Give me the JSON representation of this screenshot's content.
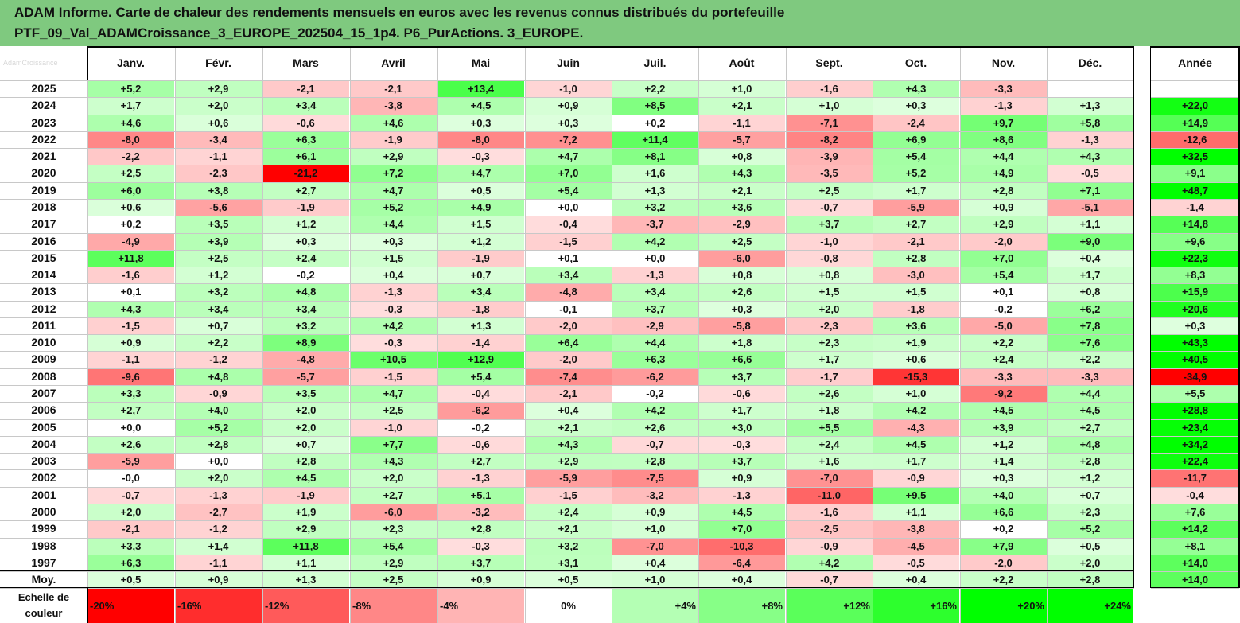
{
  "header": {
    "title_line1": "ADAM Informe. Carte de chaleur des rendements mensuels en euros avec les revenus connus distribués du portefeuille",
    "title_line2": "PTF_09_Val_ADAMCroissance_3_EUROPE_202504_15_1p4. P6_PurActions. 3_EUROPE."
  },
  "watermark": "AdamCroissance",
  "chart_data": {
    "type": "heatmap",
    "title": "ADAM Informe. Carte de chaleur des rendements mensuels en euros avec les revenus connus distribués du portefeuille PTF_09_Val_ADAMCroissance_3_EUROPE_202504_15_1p4. P6_PurActions. 3_EUROPE.",
    "columns": [
      "Janv.",
      "Févr.",
      "Mars",
      "Avril",
      "Mai",
      "Juin",
      "Juil.",
      "Août",
      "Sept.",
      "Oct.",
      "Nov.",
      "Déc."
    ],
    "year_header": "Année",
    "rows": [
      {
        "label": "2025",
        "values": [
          "+5,2",
          "+2,9",
          "-2,1",
          "-2,1",
          "+13,4",
          "-1,0",
          "+2,2",
          "+1,0",
          "-1,6",
          "+4,3",
          "-3,3",
          ""
        ],
        "year": ""
      },
      {
        "label": "2024",
        "values": [
          "+1,7",
          "+2,0",
          "+3,4",
          "-3,8",
          "+4,5",
          "+0,9",
          "+8,5",
          "+2,1",
          "+1,0",
          "+0,3",
          "-1,3",
          "+1,3"
        ],
        "year": "+22,0"
      },
      {
        "label": "2023",
        "values": [
          "+4,6",
          "+0,6",
          "-0,6",
          "+4,6",
          "+0,3",
          "+0,3",
          "+0,2",
          "-1,1",
          "-7,1",
          "-2,4",
          "+9,7",
          "+5,8"
        ],
        "year": "+14,9"
      },
      {
        "label": "2022",
        "values": [
          "-8,0",
          "-3,4",
          "+6,3",
          "-1,9",
          "-8,0",
          "-7,2",
          "+11,4",
          "-5,7",
          "-8,2",
          "+6,9",
          "+8,6",
          "-1,3"
        ],
        "year": "-12,6"
      },
      {
        "label": "2021",
        "values": [
          "-2,2",
          "-1,1",
          "+6,1",
          "+2,9",
          "-0,3",
          "+4,7",
          "+8,1",
          "+0,8",
          "-3,9",
          "+5,4",
          "+4,4",
          "+4,3"
        ],
        "year": "+32,5"
      },
      {
        "label": "2020",
        "values": [
          "+2,5",
          "-2,3",
          "-21,2",
          "+7,2",
          "+4,7",
          "+7,0",
          "+1,6",
          "+4,3",
          "-3,5",
          "+5,2",
          "+4,9",
          "-0,5"
        ],
        "year": "+9,1"
      },
      {
        "label": "2019",
        "values": [
          "+6,0",
          "+3,8",
          "+2,7",
          "+4,7",
          "+0,5",
          "+5,4",
          "+1,3",
          "+2,1",
          "+2,5",
          "+1,7",
          "+2,8",
          "+7,1"
        ],
        "year": "+48,7"
      },
      {
        "label": "2018",
        "values": [
          "+0,6",
          "-5,6",
          "-1,9",
          "+5,2",
          "+4,9",
          "+0,0",
          "+3,2",
          "+3,6",
          "-0,7",
          "-5,9",
          "+0,9",
          "-5,1"
        ],
        "year": "-1,4"
      },
      {
        "label": "2017",
        "values": [
          "+0,2",
          "+3,5",
          "+1,2",
          "+4,4",
          "+1,5",
          "-0,4",
          "-3,7",
          "-2,9",
          "+3,7",
          "+2,7",
          "+2,9",
          "+1,1"
        ],
        "year": "+14,8"
      },
      {
        "label": "2016",
        "values": [
          "-4,9",
          "+3,9",
          "+0,3",
          "+0,3",
          "+1,2",
          "-1,5",
          "+4,2",
          "+2,5",
          "-1,0",
          "-2,1",
          "-2,0",
          "+9,0"
        ],
        "year": "+9,6"
      },
      {
        "label": "2015",
        "values": [
          "+11,8",
          "+2,5",
          "+2,4",
          "+1,5",
          "-1,9",
          "+0,1",
          "+0,0",
          "-6,0",
          "-0,8",
          "+2,8",
          "+7,0",
          "+0,4"
        ],
        "year": "+22,3"
      },
      {
        "label": "2014",
        "values": [
          "-1,6",
          "+1,2",
          "-0,2",
          "+0,4",
          "+0,7",
          "+3,4",
          "-1,3",
          "+0,8",
          "+0,8",
          "-3,0",
          "+5,4",
          "+1,7"
        ],
        "year": "+8,3"
      },
      {
        "label": "2013",
        "values": [
          "+0,1",
          "+3,2",
          "+4,8",
          "-1,3",
          "+3,4",
          "-4,8",
          "+3,4",
          "+2,6",
          "+1,5",
          "+1,5",
          "+0,1",
          "+0,8"
        ],
        "year": "+15,9"
      },
      {
        "label": "2012",
        "values": [
          "+4,3",
          "+3,4",
          "+3,4",
          "-0,3",
          "-1,8",
          "-0,1",
          "+3,7",
          "+0,3",
          "+2,0",
          "-1,8",
          "-0,2",
          "+6,2"
        ],
        "year": "+20,6"
      },
      {
        "label": "2011",
        "values": [
          "-1,5",
          "+0,7",
          "+3,2",
          "+4,2",
          "+1,3",
          "-2,0",
          "-2,9",
          "-5,8",
          "-2,3",
          "+3,6",
          "-5,0",
          "+7,8"
        ],
        "year": "+0,3"
      },
      {
        "label": "2010",
        "values": [
          "+0,9",
          "+2,2",
          "+8,9",
          "-0,3",
          "-1,4",
          "+6,4",
          "+4,4",
          "+1,8",
          "+2,3",
          "+1,9",
          "+2,2",
          "+7,6"
        ],
        "year": "+43,3"
      },
      {
        "label": "2009",
        "values": [
          "-1,1",
          "-1,2",
          "-4,8",
          "+10,5",
          "+12,9",
          "-2,0",
          "+6,3",
          "+6,6",
          "+1,7",
          "+0,6",
          "+2,4",
          "+2,2"
        ],
        "year": "+40,5"
      },
      {
        "label": "2008",
        "values": [
          "-9,6",
          "+4,8",
          "-5,7",
          "-1,5",
          "+5,4",
          "-7,4",
          "-6,2",
          "+3,7",
          "-1,7",
          "-15,3",
          "-3,3",
          "-3,3"
        ],
        "year": "-34,9"
      },
      {
        "label": "2007",
        "values": [
          "+3,3",
          "-0,9",
          "+3,5",
          "+4,7",
          "-0,4",
          "-2,1",
          "-0,2",
          "-0,6",
          "+2,6",
          "+1,0",
          "-9,2",
          "+4,4"
        ],
        "year": "+5,5"
      },
      {
        "label": "2006",
        "values": [
          "+2,7",
          "+4,0",
          "+2,0",
          "+2,5",
          "-6,2",
          "+0,4",
          "+4,2",
          "+1,7",
          "+1,8",
          "+4,2",
          "+4,5",
          "+4,5"
        ],
        "year": "+28,8"
      },
      {
        "label": "2005",
        "values": [
          "+0,0",
          "+5,2",
          "+2,0",
          "-1,0",
          "-0,2",
          "+2,1",
          "+2,6",
          "+3,0",
          "+5,5",
          "-4,3",
          "+3,9",
          "+2,7"
        ],
        "year": "+23,4"
      },
      {
        "label": "2004",
        "values": [
          "+2,6",
          "+2,8",
          "+0,7",
          "+7,7",
          "-0,6",
          "+4,3",
          "-0,7",
          "-0,3",
          "+2,4",
          "+4,5",
          "+1,2",
          "+4,8"
        ],
        "year": "+34,2"
      },
      {
        "label": "2003",
        "values": [
          "-5,9",
          "+0,0",
          "+2,8",
          "+4,3",
          "+2,7",
          "+2,9",
          "+2,8",
          "+3,7",
          "+1,6",
          "+1,7",
          "+1,4",
          "+2,8"
        ],
        "year": "+22,4"
      },
      {
        "label": "2002",
        "values": [
          "-0,0",
          "+2,0",
          "+4,5",
          "+2,0",
          "-1,3",
          "-5,9",
          "-7,5",
          "+0,9",
          "-7,0",
          "-0,9",
          "+0,3",
          "+1,2"
        ],
        "year": "-11,7"
      },
      {
        "label": "2001",
        "values": [
          "-0,7",
          "-1,3",
          "-1,9",
          "+2,7",
          "+5,1",
          "-1,5",
          "-3,2",
          "-1,3",
          "-11,0",
          "+9,5",
          "+4,0",
          "+0,7"
        ],
        "year": "-0,4"
      },
      {
        "label": "2000",
        "values": [
          "+2,0",
          "-2,7",
          "+1,9",
          "-6,0",
          "-3,2",
          "+2,4",
          "+0,9",
          "+4,5",
          "-1,6",
          "+1,1",
          "+6,6",
          "+2,3"
        ],
        "year": "+7,6"
      },
      {
        "label": "1999",
        "values": [
          "-2,1",
          "-1,2",
          "+2,9",
          "+2,3",
          "+2,8",
          "+2,1",
          "+1,0",
          "+7,0",
          "-2,5",
          "-3,8",
          "+0,2",
          "+5,2"
        ],
        "year": "+14,2"
      },
      {
        "label": "1998",
        "values": [
          "+3,3",
          "+1,4",
          "+11,8",
          "+5,4",
          "-0,3",
          "+3,2",
          "-7,0",
          "-10,3",
          "-0,9",
          "-4,5",
          "+7,9",
          "+0,5"
        ],
        "year": "+8,1"
      },
      {
        "label": "1997",
        "values": [
          "+6,3",
          "-1,1",
          "+1,1",
          "+2,9",
          "+3,7",
          "+3,1",
          "+0,4",
          "-6,4",
          "+4,2",
          "-0,5",
          "-2,0",
          "+2,0"
        ],
        "year": "+14,0"
      }
    ],
    "average": {
      "label": "Moy.",
      "values": [
        "+0,5",
        "+0,9",
        "+1,3",
        "+2,5",
        "+0,9",
        "+0,5",
        "+1,0",
        "+0,4",
        "-0,7",
        "+0,4",
        "+2,2",
        "+2,8"
      ],
      "year": "+14,0"
    },
    "scale": {
      "label_line1": "Echelle de",
      "label_line2": "couleur",
      "steps": [
        "-20%",
        "-16%",
        "-12%",
        "-8%",
        "-4%",
        "0%",
        "+4%",
        "+8%",
        "+12%",
        "+16%",
        "+20%",
        "+24%"
      ],
      "step_values": [
        -20,
        -16,
        -12,
        -8,
        -4,
        0,
        4,
        8,
        12,
        16,
        20,
        24
      ]
    },
    "colors": {
      "neg_max": "#ff0000",
      "neutral": "#ffffff",
      "pos_max": "#00ff00",
      "grid": "#c8c8c8",
      "border": "#000000"
    }
  }
}
